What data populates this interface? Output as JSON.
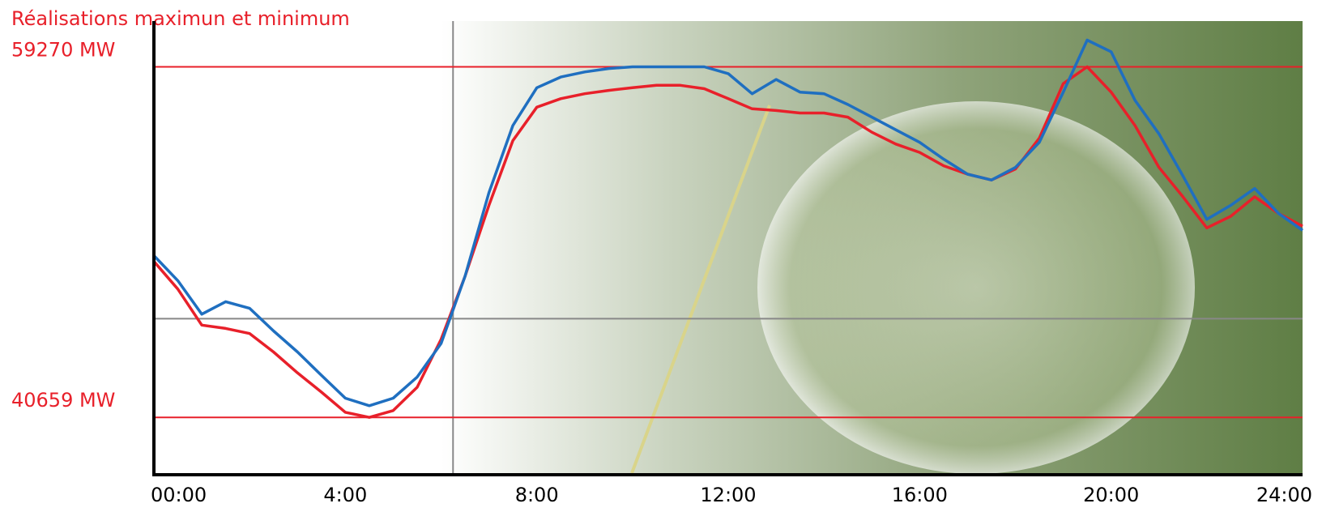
{
  "chart_data": {
    "type": "line",
    "title": "Réalisations maximun et minimum",
    "x": [
      0,
      0.5,
      1,
      1.5,
      2,
      2.5,
      3,
      3.5,
      4,
      4.5,
      5,
      5.5,
      6,
      6.5,
      7,
      7.5,
      8,
      8.5,
      9,
      9.5,
      10,
      10.5,
      11,
      11.5,
      12,
      12.5,
      13,
      13.5,
      14,
      14.5,
      15,
      15.5,
      16,
      16.5,
      17,
      17.5,
      18,
      18.5,
      19,
      19.5,
      20,
      20.5,
      21,
      21.5,
      22,
      22.5,
      23,
      23.5,
      24
    ],
    "series": [
      {
        "color": "#e8202a",
        "values": [
          48940,
          47470,
          45560,
          45380,
          45110,
          44130,
          43020,
          42000,
          40930,
          40659,
          41020,
          42260,
          44800,
          48140,
          51920,
          55350,
          57130,
          57580,
          57840,
          58020,
          58160,
          58290,
          58290,
          58110,
          57580,
          57040,
          56950,
          56820,
          56820,
          56600,
          55800,
          55170,
          54730,
          54020,
          53570,
          53260,
          53840,
          55480,
          58380,
          59270,
          57930,
          56150,
          53930,
          52370,
          50720,
          51340,
          52370,
          51480,
          50810
        ]
      },
      {
        "color": "#1f6fc0",
        "values": [
          49250,
          47920,
          46140,
          46800,
          46450,
          45250,
          44130,
          42890,
          41680,
          41280,
          41680,
          42800,
          44580,
          48140,
          52590,
          56150,
          58160,
          58730,
          59000,
          59180,
          59270,
          59270,
          59270,
          59270,
          58910,
          57840,
          58600,
          57930,
          57840,
          57270,
          56600,
          55930,
          55260,
          54370,
          53570,
          53260,
          53930,
          55260,
          57930,
          60690,
          60070,
          57490,
          55710,
          53480,
          51170,
          51920,
          52810,
          51480,
          50590
        ]
      }
    ],
    "xlim": [
      0,
      24
    ],
    "xticks": [
      {
        "value": 0,
        "label": "00:00"
      },
      {
        "value": 4,
        "label": "4:00"
      },
      {
        "value": 8,
        "label": "8:00"
      },
      {
        "value": 12,
        "label": "12:00"
      },
      {
        "value": 16,
        "label": "16:00"
      },
      {
        "value": 20,
        "label": "20:00"
      },
      {
        "value": 24,
        "label": "24:00"
      }
    ],
    "ylim": [
      37700,
      61700
    ],
    "yticks": [
      {
        "value": 40659,
        "label": "40659 MW"
      },
      {
        "value": 59270,
        "label": "59270 MW"
      }
    ],
    "crosshair": {
      "x": 6.25,
      "y": 45900
    }
  }
}
